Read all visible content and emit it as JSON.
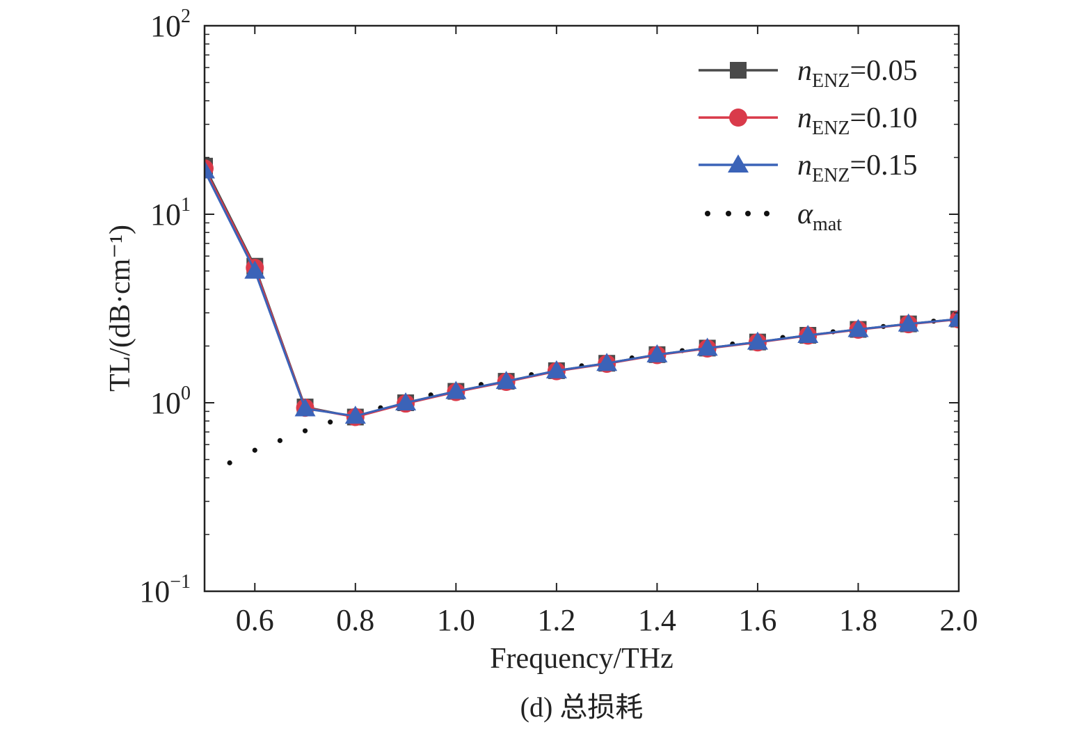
{
  "caption": "(d) 总损耗",
  "chart_data": {
    "type": "line",
    "xlabel": "Frequency/THz",
    "ylabel": "TL/(dB·cm⁻¹)",
    "yscale": "log",
    "xlim": [
      0.5,
      2.0
    ],
    "ylim": [
      0.1,
      100
    ],
    "x_ticks": [
      0.6,
      0.8,
      1.0,
      1.2,
      1.4,
      1.6,
      1.8,
      2.0
    ],
    "x_tick_labels": [
      "0.6",
      "0.8",
      "1.0",
      "1.2",
      "1.4",
      "1.6",
      "1.8",
      "2.0"
    ],
    "y_ticks": [
      {
        "value": 0.1,
        "base": "10",
        "exp": "−1"
      },
      {
        "value": 1,
        "base": "10",
        "exp": "0"
      },
      {
        "value": 10,
        "base": "10",
        "exp": "1"
      },
      {
        "value": 100,
        "base": "10",
        "exp": "2"
      }
    ],
    "x": [
      0.5,
      0.6,
      0.7,
      0.8,
      0.9,
      1.0,
      1.1,
      1.2,
      1.3,
      1.4,
      1.5,
      1.6,
      1.7,
      1.8,
      1.9,
      2.0
    ],
    "grid": false,
    "legend_position": "top-right",
    "series": [
      {
        "name": "n_ENZ=0.05",
        "label_main": "n",
        "label_sub": "ENZ",
        "label_rest": "=0.05",
        "marker": "square",
        "color": "#4a4a4a",
        "values": [
          18.0,
          5.3,
          0.95,
          0.84,
          1.0,
          1.15,
          1.3,
          1.48,
          1.62,
          1.8,
          1.95,
          2.1,
          2.28,
          2.45,
          2.62,
          2.78
        ]
      },
      {
        "name": "n_ENZ=0.10",
        "label_main": "n",
        "label_sub": "ENZ",
        "label_rest": "=0.10",
        "marker": "circle",
        "color": "#d93a4a",
        "values": [
          17.5,
          5.2,
          0.94,
          0.84,
          0.99,
          1.14,
          1.29,
          1.47,
          1.61,
          1.79,
          1.94,
          2.09,
          2.27,
          2.44,
          2.61,
          2.77
        ]
      },
      {
        "name": "n_ENZ=0.15",
        "label_main": "n",
        "label_sub": "ENZ",
        "label_rest": "=0.15",
        "marker": "triangle",
        "color": "#3b63b8",
        "values": [
          17.0,
          5.0,
          0.93,
          0.85,
          1.0,
          1.15,
          1.3,
          1.48,
          1.62,
          1.8,
          1.95,
          2.1,
          2.28,
          2.45,
          2.62,
          2.78
        ]
      },
      {
        "name": "α_mat",
        "label_main": "α",
        "label_sub": "mat",
        "label_rest": "",
        "marker": "dotted",
        "color": "#111111",
        "x": [
          0.55,
          0.6,
          0.65,
          0.7,
          0.75,
          0.8,
          0.85,
          0.9,
          0.95,
          1.0,
          1.05,
          1.1,
          1.15,
          1.2,
          1.25,
          1.3,
          1.35,
          1.4,
          1.45,
          1.5,
          1.55,
          1.6,
          1.65,
          1.7,
          1.75,
          1.8,
          1.85,
          1.9,
          1.95,
          2.0
        ],
        "values": [
          0.48,
          0.56,
          0.63,
          0.71,
          0.79,
          0.87,
          0.94,
          1.02,
          1.1,
          1.17,
          1.25,
          1.33,
          1.41,
          1.49,
          1.57,
          1.65,
          1.73,
          1.81,
          1.89,
          1.97,
          2.05,
          2.13,
          2.22,
          2.3,
          2.38,
          2.46,
          2.54,
          2.63,
          2.71,
          2.79
        ]
      }
    ]
  }
}
